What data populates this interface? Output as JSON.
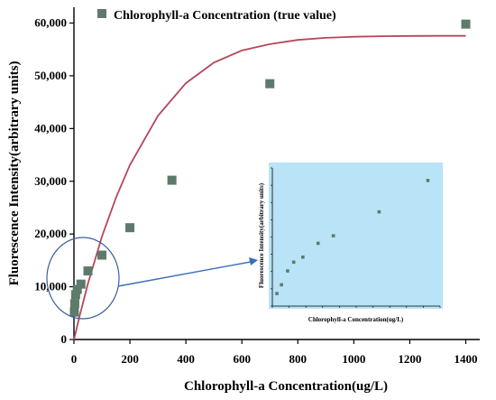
{
  "chart_data": {
    "type": "scatter",
    "title": "",
    "xlabel": "Chlorophyll-a Concentration(ug/L)",
    "ylabel": "Fluorescence Intensity(arbitrary units)",
    "xlim": [
      0,
      1450
    ],
    "ylim": [
      0,
      63000
    ],
    "x_ticks": [
      "0",
      "200",
      "400",
      "600",
      "800",
      "1000",
      "1200",
      "1400"
    ],
    "y_ticks": [
      "0",
      "10,000",
      "20,000",
      "30,000",
      "40,000",
      "50,000",
      "60,000"
    ],
    "legend": {
      "label": "Chlorophyll-a Concentration (true value)",
      "placement": "top-center"
    },
    "series": [
      {
        "name": "Chlorophyll-a Concentration (true value)",
        "marker": "square",
        "color": "#5e7a6a",
        "x": [
          1.5,
          3,
          6,
          12,
          25,
          50,
          100,
          200,
          350,
          700,
          1400
        ],
        "y": [
          5200,
          6800,
          8500,
          9500,
          10500,
          13000,
          16000,
          21200,
          30200,
          48500,
          59800
        ]
      }
    ],
    "fit_curve": {
      "color": "#b5475a",
      "form": "exponential-saturation",
      "x": [
        0,
        20,
        50,
        100,
        150,
        200,
        300,
        400,
        500,
        600,
        700,
        800,
        900,
        1000,
        1100,
        1200,
        1300,
        1400
      ],
      "y": [
        0,
        4400,
        10600,
        19500,
        26900,
        33100,
        42400,
        48600,
        52500,
        54800,
        56000,
        56800,
        57200,
        57400,
        57500,
        57550,
        57570,
        57580
      ]
    },
    "inset": {
      "background": "#b9e3f7",
      "xlabel": "Chlorophyll-a Concentration(ug/L)",
      "ylabel": "Fluorescence Intensity(arbitrary units)",
      "xlim": [
        0,
        55
      ],
      "ylim": [
        4000,
        15000
      ],
      "points": {
        "x": [
          1.5,
          3,
          5,
          7,
          10,
          15,
          20,
          35,
          51
        ],
        "y": [
          5000,
          5700,
          6800,
          7500,
          7900,
          9000,
          9600,
          11500,
          14000
        ]
      }
    },
    "highlight_circle_color": "#3b5e9c",
    "arrow_color": "#3b6fb6"
  }
}
